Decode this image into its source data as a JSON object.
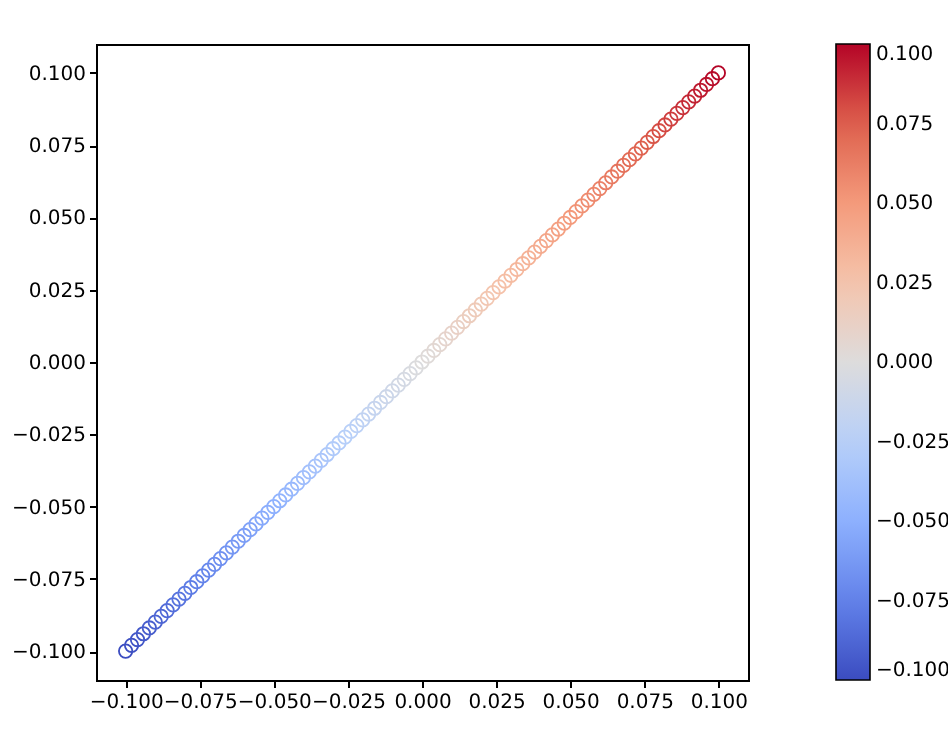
{
  "chart_data": {
    "type": "scatter",
    "x": [
      -0.1,
      -0.098,
      -0.096,
      -0.094,
      -0.092,
      -0.09,
      -0.088,
      -0.086,
      -0.084,
      -0.082,
      -0.08,
      -0.078,
      -0.076,
      -0.074,
      -0.072,
      -0.07,
      -0.068,
      -0.066,
      -0.064,
      -0.062,
      -0.06,
      -0.058,
      -0.056,
      -0.054,
      -0.052,
      -0.05,
      -0.048,
      -0.046,
      -0.044,
      -0.042,
      -0.04,
      -0.038,
      -0.036,
      -0.034,
      -0.032,
      -0.03,
      -0.028,
      -0.026,
      -0.024,
      -0.022,
      -0.02,
      -0.018,
      -0.016,
      -0.014,
      -0.012,
      -0.01,
      -0.008,
      -0.006,
      -0.004,
      -0.002,
      0,
      0.002,
      0.004,
      0.006,
      0.008,
      0.01,
      0.012,
      0.014,
      0.016,
      0.018,
      0.02,
      0.022,
      0.024,
      0.026,
      0.028,
      0.03,
      0.032,
      0.034,
      0.036,
      0.038,
      0.04,
      0.042,
      0.044,
      0.046,
      0.048,
      0.05,
      0.052,
      0.054,
      0.056,
      0.058,
      0.06,
      0.062,
      0.064,
      0.066,
      0.068,
      0.07,
      0.072,
      0.074,
      0.076,
      0.078,
      0.08,
      0.082,
      0.084,
      0.086,
      0.088,
      0.09,
      0.092,
      0.094,
      0.096,
      0.098,
      0.1
    ],
    "values": [
      -0.1,
      -0.098,
      -0.096,
      -0.094,
      -0.092,
      -0.09,
      -0.088,
      -0.086,
      -0.084,
      -0.082,
      -0.08,
      -0.078,
      -0.076,
      -0.074,
      -0.072,
      -0.07,
      -0.068,
      -0.066,
      -0.064,
      -0.062,
      -0.06,
      -0.058,
      -0.056,
      -0.054,
      -0.052,
      -0.05,
      -0.048,
      -0.046,
      -0.044,
      -0.042,
      -0.04,
      -0.038,
      -0.036,
      -0.034,
      -0.032,
      -0.03,
      -0.028,
      -0.026,
      -0.024,
      -0.022,
      -0.02,
      -0.018,
      -0.016,
      -0.014,
      -0.012,
      -0.01,
      -0.008,
      -0.006,
      -0.004,
      -0.002,
      0,
      0.002,
      0.004,
      0.006,
      0.008,
      0.01,
      0.012,
      0.014,
      0.016,
      0.018,
      0.02,
      0.022,
      0.024,
      0.026,
      0.028,
      0.03,
      0.032,
      0.034,
      0.036,
      0.038,
      0.04,
      0.042,
      0.044,
      0.046,
      0.048,
      0.05,
      0.052,
      0.054,
      0.056,
      0.058,
      0.06,
      0.062,
      0.064,
      0.066,
      0.068,
      0.07,
      0.072,
      0.074,
      0.076,
      0.078,
      0.08,
      0.082,
      0.084,
      0.086,
      0.088,
      0.09,
      0.092,
      0.094,
      0.096,
      0.098,
      0.1
    ],
    "cvalues": [
      -0.1,
      -0.098,
      -0.096,
      -0.094,
      -0.092,
      -0.09,
      -0.088,
      -0.086,
      -0.084,
      -0.082,
      -0.08,
      -0.078,
      -0.076,
      -0.074,
      -0.072,
      -0.07,
      -0.068,
      -0.066,
      -0.064,
      -0.062,
      -0.06,
      -0.058,
      -0.056,
      -0.054,
      -0.052,
      -0.05,
      -0.048,
      -0.046,
      -0.044,
      -0.042,
      -0.04,
      -0.038,
      -0.036,
      -0.034,
      -0.032,
      -0.03,
      -0.028,
      -0.026,
      -0.024,
      -0.022,
      -0.02,
      -0.018,
      -0.016,
      -0.014,
      -0.012,
      -0.01,
      -0.008,
      -0.006,
      -0.004,
      -0.002,
      0,
      0.002,
      0.004,
      0.006,
      0.008,
      0.01,
      0.012,
      0.014,
      0.016,
      0.018,
      0.02,
      0.022,
      0.024,
      0.026,
      0.028,
      0.03,
      0.032,
      0.034,
      0.036,
      0.038,
      0.04,
      0.042,
      0.044,
      0.046,
      0.048,
      0.05,
      0.052,
      0.054,
      0.056,
      0.058,
      0.06,
      0.062,
      0.064,
      0.066,
      0.068,
      0.07,
      0.072,
      0.074,
      0.076,
      0.078,
      0.08,
      0.082,
      0.084,
      0.086,
      0.088,
      0.09,
      0.092,
      0.094,
      0.096,
      0.098,
      0.1
    ],
    "xlim": [
      -0.11,
      0.11
    ],
    "xticks": [
      {
        "value": -0.1,
        "label": "−0.100"
      },
      {
        "value": -0.075,
        "label": "−0.075"
      },
      {
        "value": -0.05,
        "label": "−0.050"
      },
      {
        "value": -0.025,
        "label": "−0.025"
      },
      {
        "value": 0,
        "label": "0.000"
      },
      {
        "value": 0.025,
        "label": "0.025"
      },
      {
        "value": 0.05,
        "label": "0.050"
      },
      {
        "value": 0.075,
        "label": "0.075"
      },
      {
        "value": 0.1,
        "label": "0.100"
      }
    ],
    "ylim": [
      -0.11,
      0.11
    ],
    "yticks": [
      {
        "value": -0.1,
        "label": "−0.100"
      },
      {
        "value": -0.075,
        "label": "−0.075"
      },
      {
        "value": -0.05,
        "label": "−0.050"
      },
      {
        "value": -0.025,
        "label": "−0.025"
      },
      {
        "value": 0,
        "label": "0.000"
      },
      {
        "value": 0.025,
        "label": "0.025"
      },
      {
        "value": 0.05,
        "label": "0.050"
      },
      {
        "value": 0.075,
        "label": "0.075"
      },
      {
        "value": 0.1,
        "label": "0.100"
      }
    ],
    "clim": [
      -0.1,
      0.1
    ],
    "cticks": [
      {
        "value": -0.1,
        "label": "−0.100"
      },
      {
        "value": -0.075,
        "label": "−0.075"
      },
      {
        "value": -0.05,
        "label": "−0.050"
      },
      {
        "value": -0.025,
        "label": "−0.025"
      },
      {
        "value": 0,
        "label": "0.000"
      },
      {
        "value": 0.025,
        "label": "0.025"
      },
      {
        "value": 0.05,
        "label": "0.050"
      },
      {
        "value": 0.075,
        "label": "0.075"
      },
      {
        "value": 0.1,
        "label": "0.100"
      }
    ],
    "marker": "circle",
    "grid": false
  }
}
